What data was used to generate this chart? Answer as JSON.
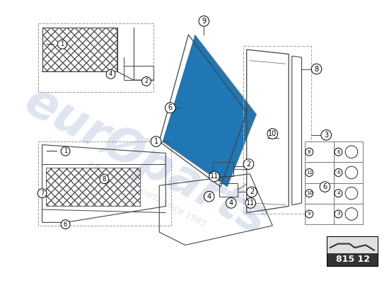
{
  "bg_color": "#ffffff",
  "watermark_color": "#d0d8e8",
  "line_color": "#444444",
  "label_circle_color": "#000000",
  "part_number": "815 12",
  "grid_rows": [
    [
      8,
      6
    ],
    [
      11,
      6
    ],
    [
      10,
      4
    ],
    [
      9,
      3
    ]
  ]
}
